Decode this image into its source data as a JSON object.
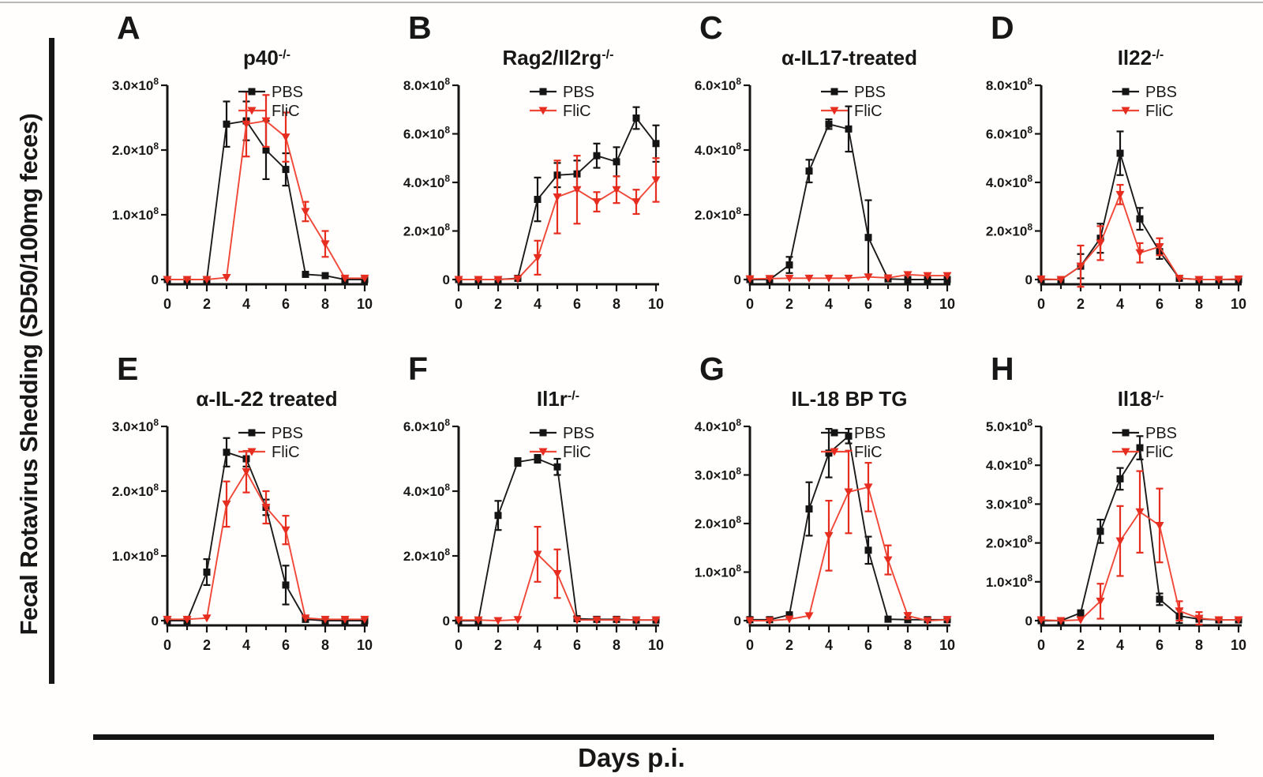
{
  "figure": {
    "y_axis_label": "Fecal Rotavirus Shedding  (SD50/100mg feces)",
    "x_axis_label": "Days p.i.",
    "colors": {
      "pbs_line": "#1b1b1b",
      "pbs_marker": "#141414",
      "flic_line": "#f04737",
      "flic_marker": "#e62d1f",
      "axis": "#141414",
      "tick_text": "#171717"
    }
  },
  "chart_data": {
    "type": "line",
    "x": [
      0,
      1,
      2,
      3,
      4,
      5,
      6,
      7,
      8,
      9,
      10
    ],
    "x_labeled_ticks": [
      0,
      2,
      4,
      6,
      8,
      10
    ],
    "y_unit": "x10^8",
    "values_scale": "1e8",
    "legend_position": "top-right-inside",
    "panels": [
      {
        "letter": "A",
        "title": "p40",
        "title_sup": "-/-",
        "ymax": 3,
        "yticks": [
          0,
          1,
          2,
          3
        ],
        "series": [
          {
            "name": "PBS",
            "marker": "square",
            "values": [
              0,
              0,
              0,
              2.4,
              2.45,
              2.0,
              1.7,
              0.08,
              0.06,
              0,
              0
            ],
            "err": [
              0,
              0,
              0,
              0.35,
              0.3,
              0.45,
              0.25,
              0.04,
              0.03,
              0,
              0
            ]
          },
          {
            "name": "FliC",
            "marker": "triangle-down",
            "values": [
              0,
              0,
              0,
              0.03,
              2.4,
              2.45,
              2.2,
              1.05,
              0.55,
              0.02,
              0.02
            ],
            "err": [
              0,
              0,
              0,
              0,
              0.5,
              0.4,
              0.38,
              0.15,
              0.2,
              0,
              0
            ]
          }
        ]
      },
      {
        "letter": "B",
        "title": "Rag2/Il2rg",
        "title_sup": "-/-",
        "ymax": 8,
        "yticks": [
          0,
          2,
          4,
          6,
          8
        ],
        "series": [
          {
            "name": "PBS",
            "marker": "square",
            "values": [
              0,
              0,
              0,
              0.05,
              3.3,
              4.3,
              4.35,
              5.1,
              4.85,
              6.65,
              5.6
            ],
            "err": [
              0,
              0,
              0,
              0,
              0.9,
              0.5,
              0.55,
              0.5,
              0.6,
              0.45,
              0.75
            ]
          },
          {
            "name": "FliC",
            "marker": "triangle-down",
            "values": [
              0,
              0,
              0,
              0.03,
              0.9,
              3.4,
              3.7,
              3.2,
              3.7,
              3.2,
              4.1
            ],
            "err": [
              0,
              0,
              0,
              0,
              0.7,
              1.5,
              1.4,
              0.4,
              0.55,
              0.5,
              0.9
            ]
          }
        ]
      },
      {
        "letter": "C",
        "title": "α-IL17-treated",
        "title_sup": "",
        "ymax": 6,
        "yticks": [
          0,
          2,
          4,
          6
        ],
        "series": [
          {
            "name": "PBS",
            "marker": "square",
            "values": [
              0,
              0,
              0.45,
              3.35,
              4.8,
              4.65,
              1.3,
              0.02,
              0,
              0,
              0
            ],
            "err": [
              0,
              0,
              0.25,
              0.35,
              0.15,
              0.7,
              1.15,
              0,
              0.06,
              0.06,
              0.08
            ]
          },
          {
            "name": "FliC",
            "marker": "triangle-down",
            "values": [
              0.02,
              0.03,
              0.04,
              0.04,
              0.04,
              0.04,
              0.08,
              0.05,
              0.15,
              0.12,
              0.12
            ],
            "err": [
              0,
              0,
              0,
              0,
              0,
              0,
              0,
              0,
              0,
              0,
              0
            ]
          }
        ]
      },
      {
        "letter": "D",
        "title": "Il22",
        "title_sup": "-/-",
        "ymax": 8,
        "yticks": [
          0,
          2,
          4,
          6,
          8
        ],
        "series": [
          {
            "name": "PBS",
            "marker": "square",
            "values": [
              0,
              0,
              0.55,
              1.7,
              5.2,
              2.5,
              1.15,
              0.05,
              0,
              0,
              0
            ],
            "err": [
              0,
              0,
              0.5,
              0.6,
              0.9,
              0.45,
              0.3,
              0,
              0,
              0,
              0
            ]
          },
          {
            "name": "FliC",
            "marker": "triangle-down",
            "values": [
              0.02,
              0,
              0.55,
              1.5,
              3.5,
              1.1,
              1.35,
              0.05,
              0,
              0,
              0.02
            ],
            "err": [
              0,
              0,
              0.85,
              0.7,
              0.4,
              0.4,
              0.35,
              0,
              0,
              0,
              0
            ]
          }
        ]
      },
      {
        "letter": "E",
        "title": "α-IL-22 treated",
        "title_sup": "",
        "ymax": 3,
        "yticks": [
          0,
          1,
          2,
          3
        ],
        "series": [
          {
            "name": "PBS",
            "marker": "square",
            "values": [
              0,
              0,
              0.75,
              2.6,
              2.5,
              1.75,
              0.55,
              0.02,
              0,
              0,
              0
            ],
            "err": [
              0,
              0,
              0.2,
              0.22,
              0.12,
              0.12,
              0.3,
              0,
              0,
              0,
              0
            ]
          },
          {
            "name": "FliC",
            "marker": "triangle-down",
            "values": [
              0.02,
              0.02,
              0.04,
              1.8,
              2.3,
              1.75,
              1.4,
              0.04,
              0.02,
              0.02,
              0.02
            ],
            "err": [
              0,
              0,
              0,
              0.35,
              0.32,
              0.25,
              0.22,
              0,
              0,
              0,
              0
            ]
          }
        ]
      },
      {
        "letter": "F",
        "title": "Il1r",
        "title_sup": "-/-",
        "ymax": 6,
        "yticks": [
          0,
          2,
          4,
          6
        ],
        "series": [
          {
            "name": "PBS",
            "marker": "square",
            "values": [
              0,
              0,
              3.25,
              4.9,
              5.0,
              4.75,
              0.06,
              0.04,
              0.04,
              0.02,
              0.02
            ],
            "err": [
              0,
              0,
              0.45,
              0.12,
              0.12,
              0.25,
              0,
              0,
              0,
              0,
              0
            ]
          },
          {
            "name": "FliC",
            "marker": "triangle-down",
            "values": [
              0.02,
              0.02,
              0,
              0.03,
              2.05,
              1.45,
              0.02,
              0.02,
              0.02,
              0.02,
              0.02
            ],
            "err": [
              0,
              0,
              0,
              0,
              0.85,
              0.75,
              0,
              0,
              0,
              0,
              0
            ]
          }
        ]
      },
      {
        "letter": "G",
        "title": "IL-18 BP TG",
        "title_sup": "",
        "ymax": 4,
        "yticks": [
          0,
          1,
          2,
          3,
          4
        ],
        "series": [
          {
            "name": "PBS",
            "marker": "square",
            "values": [
              0.02,
              0.02,
              0.12,
              2.3,
              3.45,
              3.8,
              1.45,
              0.03,
              0.02,
              0.02,
              0.02
            ],
            "err": [
              0,
              0,
              0,
              0.55,
              0.5,
              0.15,
              0.28,
              0,
              0,
              0,
              0
            ]
          },
          {
            "name": "FliC",
            "marker": "triangle-down",
            "values": [
              0,
              0,
              0.03,
              0.1,
              1.75,
              2.65,
              2.75,
              1.25,
              0.1,
              0,
              0.02
            ],
            "err": [
              0,
              0,
              0,
              0,
              0.72,
              0.85,
              0.5,
              0.3,
              0.06,
              0,
              0
            ]
          }
        ]
      },
      {
        "letter": "H",
        "title": "Il18",
        "title_sup": "-/-",
        "ymax": 5,
        "yticks": [
          0,
          1,
          2,
          3,
          4,
          5
        ],
        "series": [
          {
            "name": "PBS",
            "marker": "square",
            "values": [
              0,
              0,
              0.2,
              2.3,
              3.65,
              4.45,
              0.55,
              0.12,
              0.04,
              0.02,
              0.02
            ],
            "err": [
              0,
              0,
              0.05,
              0.3,
              0.28,
              0.3,
              0.15,
              0.18,
              0,
              0,
              0
            ]
          },
          {
            "name": "FliC",
            "marker": "triangle-down",
            "values": [
              0.02,
              0,
              0.02,
              0.5,
              2.05,
              2.8,
              2.45,
              0.25,
              0.06,
              0.02,
              0.02
            ],
            "err": [
              0,
              0,
              0,
              0.45,
              0.9,
              1.05,
              0.95,
              0.25,
              0.16,
              0,
              0
            ]
          }
        ]
      }
    ]
  }
}
